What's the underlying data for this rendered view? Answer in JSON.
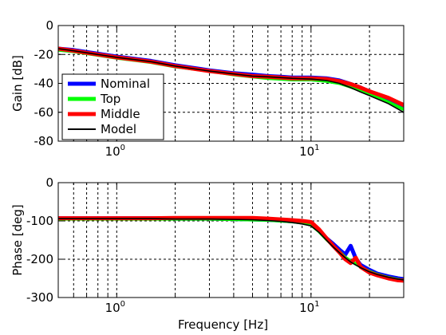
{
  "chart_data": [
    {
      "type": "line",
      "panel": "gain",
      "xscale": "log",
      "xlim": [
        0.5,
        30
      ],
      "ylim": [
        -80,
        0
      ],
      "xlabel": "",
      "ylabel": "Gain [dB]",
      "xtick_labels": [
        "10^0",
        "10^1"
      ],
      "yticks": [
        0,
        -20,
        -40,
        -60,
        -80
      ],
      "grid": true,
      "grid_style": "dashed",
      "legend_placement": "lower-left",
      "x": [
        0.5,
        0.6,
        0.8,
        1.0,
        1.5,
        2,
        3,
        4,
        5,
        6,
        7,
        8,
        10,
        12,
        14,
        16,
        18,
        20,
        25,
        30
      ],
      "series": [
        {
          "name": "Nominal",
          "color": "#0000ff",
          "values": [
            -16,
            -17,
            -19.5,
            -21.5,
            -24.5,
            -27.5,
            -31,
            -33,
            -34,
            -35,
            -35.5,
            -36,
            -36,
            -36.5,
            -38,
            -40.5,
            -43,
            -45.5,
            -51,
            -56
          ]
        },
        {
          "name": "Top",
          "color": "#00ff00",
          "values": [
            -17,
            -18,
            -20.5,
            -22.5,
            -25.5,
            -28.5,
            -31.5,
            -34,
            -35.5,
            -36.5,
            -37,
            -37.5,
            -37.5,
            -38.5,
            -40,
            -42.5,
            -45,
            -47.5,
            -53,
            -58
          ]
        },
        {
          "name": "Middle",
          "color": "#ff0000",
          "values": [
            -16,
            -17.5,
            -20,
            -22,
            -25,
            -28,
            -31.5,
            -33.5,
            -35,
            -35.5,
            -36,
            -36.5,
            -36.5,
            -37,
            -38.5,
            -40.5,
            -43,
            -45.5,
            -50,
            -55
          ]
        },
        {
          "name": "Model",
          "color": "#000000",
          "values": [
            -16,
            -17.5,
            -20,
            -22,
            -25,
            -28,
            -31.5,
            -33.5,
            -35,
            -35.5,
            -36,
            -36.5,
            -37,
            -38,
            -40,
            -43,
            -46,
            -48.5,
            -54,
            -60
          ]
        }
      ]
    },
    {
      "type": "line",
      "panel": "phase",
      "xscale": "log",
      "xlim": [
        0.5,
        30
      ],
      "ylim": [
        -300,
        0
      ],
      "xlabel": "Frequency [Hz]",
      "ylabel": "Phase [deg]",
      "xtick_labels": [
        "10^0",
        "10^1"
      ],
      "yticks": [
        0,
        -100,
        -200,
        -300
      ],
      "grid": true,
      "grid_style": "dashed",
      "x": [
        0.5,
        0.7,
        1.0,
        1.5,
        2,
        3,
        4,
        5,
        6,
        7,
        8,
        9,
        10,
        11,
        12,
        13,
        14,
        15,
        16,
        17,
        18,
        20,
        22,
        25,
        28,
        30
      ],
      "series": [
        {
          "name": "Nominal",
          "color": "#0000ff",
          "values": [
            -93,
            -93,
            -93,
            -93,
            -94,
            -94,
            -95,
            -96,
            -97,
            -99,
            -101,
            -103,
            -107,
            -125,
            -145,
            -160,
            -175,
            -188,
            -165,
            -198,
            -215,
            -228,
            -238,
            -245,
            -250,
            -252
          ]
        },
        {
          "name": "Top",
          "color": "#00ff00",
          "values": [
            -95,
            -95,
            -95,
            -95,
            -95,
            -95,
            -96,
            -97,
            -98,
            -100,
            -102,
            -105,
            -110,
            -128,
            -148,
            -165,
            -180,
            -195,
            -205,
            -212,
            -220,
            -232,
            -240,
            -248,
            -253,
            -255
          ]
        },
        {
          "name": "Middle",
          "color": "#ff0000",
          "values": [
            -93,
            -93,
            -93,
            -93,
            -92,
            -92,
            -92,
            -92,
            -94,
            -96,
            -98,
            -100,
            -103,
            -122,
            -145,
            -165,
            -182,
            -200,
            -210,
            -196,
            -220,
            -235,
            -242,
            -250,
            -255,
            -256
          ]
        },
        {
          "name": "Model",
          "color": "#000000",
          "values": [
            -94,
            -94,
            -94,
            -94,
            -95,
            -95,
            -96,
            -97,
            -99,
            -101,
            -104,
            -108,
            -113,
            -130,
            -150,
            -168,
            -183,
            -196,
            -207,
            -215,
            -222,
            -233,
            -240,
            -247,
            -252,
            -254
          ]
        }
      ]
    }
  ]
}
